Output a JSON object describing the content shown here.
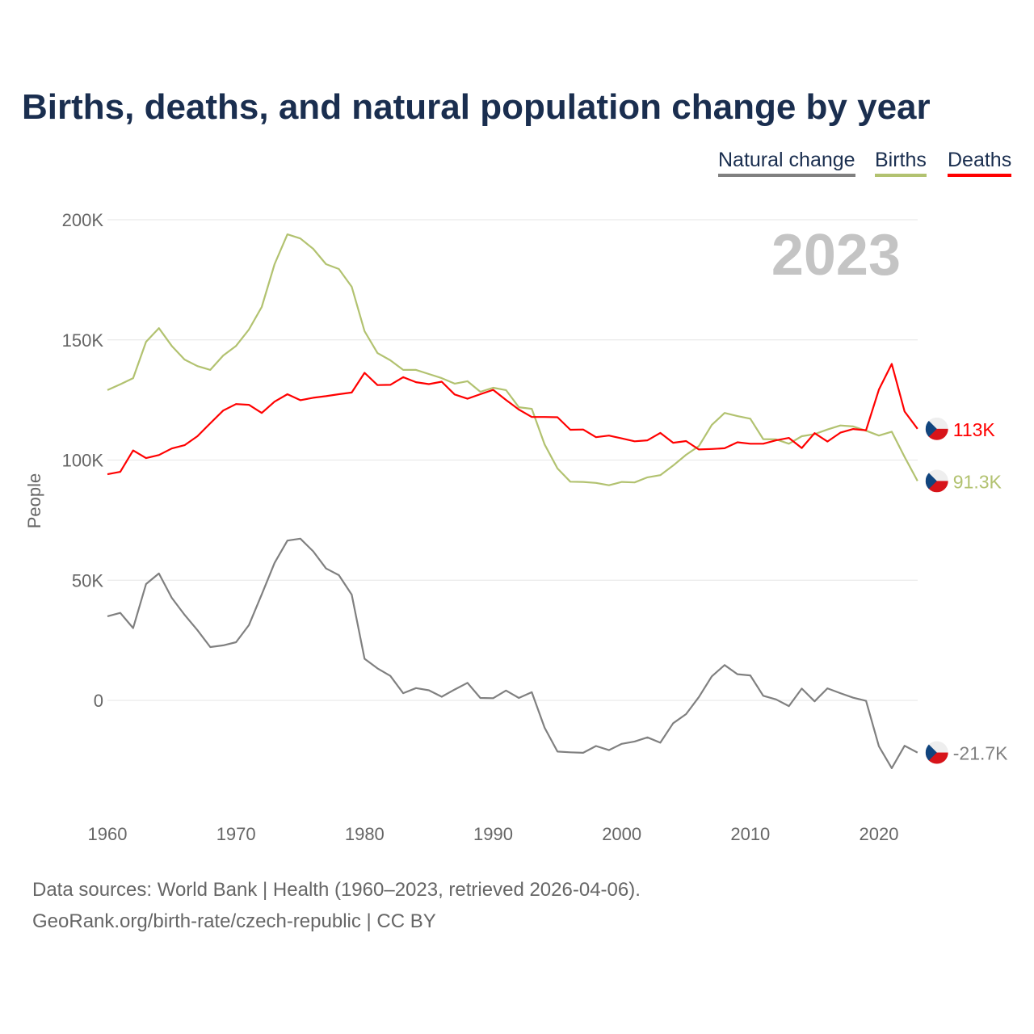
{
  "title": "Births, deaths, and natural population change by year",
  "legend": [
    {
      "label": "Natural change",
      "color": "#808080"
    },
    {
      "label": "Births",
      "color": "#b2c270"
    },
    {
      "label": "Deaths",
      "color": "#ff0000"
    }
  ],
  "year_label": "2023",
  "footer": {
    "source": "Data sources: World Bank | Health (1960–2023, retrieved 2026-04-06).",
    "credit": "GeoRank.org/birth-rate/czech-republic | CC BY"
  },
  "chart_data": {
    "type": "line",
    "title": "Births, deaths, and natural population change by year",
    "xlabel": "",
    "ylabel": "People",
    "xlim": [
      1960,
      2023
    ],
    "ylim": [
      -40000,
      200000
    ],
    "x_ticks": [
      "1960",
      "1970",
      "1980",
      "1990",
      "2000",
      "2010",
      "2020"
    ],
    "y_ticks": [
      {
        "v": 0,
        "label": "0"
      },
      {
        "v": 50000,
        "label": "50K"
      },
      {
        "v": 100000,
        "label": "100K"
      },
      {
        "v": 150000,
        "label": "150K"
      },
      {
        "v": 200000,
        "label": "200K"
      }
    ],
    "grid": true,
    "legend_position": "top-right",
    "x_start": 1960,
    "series": [
      {
        "name": "Natural change",
        "color": "#808080",
        "end_label": "-21.7K",
        "values": [
          35000,
          36400,
          30100,
          48400,
          52800,
          42700,
          35600,
          29200,
          22200,
          22900,
          24200,
          31300,
          44100,
          57200,
          66500,
          67300,
          62000,
          54900,
          52100,
          44000,
          17300,
          13300,
          10200,
          3000,
          5100,
          4200,
          1500,
          4500,
          7300,
          1000,
          900,
          4100,
          1000,
          3400,
          -11400,
          -21300,
          -21600,
          -21800,
          -19000,
          -20700,
          -18100,
          -17100,
          -15400,
          -17600,
          -9500,
          -5700,
          1400,
          10000,
          14700,
          10900,
          10400,
          1900,
          400,
          -2400,
          4900,
          -400,
          5000,
          3000,
          1100,
          -200,
          -19100,
          -28200,
          -18900,
          -21700
        ]
      },
      {
        "name": "Births",
        "color": "#b2c270",
        "end_label": "91.3K",
        "values": [
          129100,
          131500,
          134100,
          149200,
          154900,
          147500,
          141800,
          139100,
          137500,
          143500,
          147500,
          154300,
          163700,
          181500,
          193900,
          192200,
          187900,
          181500,
          179500,
          172100,
          153600,
          144500,
          141500,
          137500,
          137500,
          135800,
          134100,
          131800,
          132800,
          128400,
          130100,
          129100,
          122000,
          121300,
          106500,
          96500,
          91000,
          90900,
          90500,
          89500,
          90900,
          90700,
          92800,
          93700,
          97700,
          102200,
          105800,
          114600,
          119600,
          118300,
          117200,
          108700,
          108600,
          106800,
          109900,
          110800,
          112700,
          114400,
          114000,
          112200,
          110200,
          111800,
          101300,
          91300
        ]
      },
      {
        "name": "Deaths",
        "color": "#ff0000",
        "end_label": "113K",
        "values": [
          94100,
          95100,
          104000,
          100800,
          102100,
          104800,
          106200,
          109900,
          115300,
          120600,
          123300,
          123000,
          119600,
          124300,
          127400,
          124900,
          125900,
          126600,
          127400,
          128100,
          136300,
          131200,
          131300,
          134500,
          132400,
          131600,
          132600,
          127300,
          125500,
          127400,
          129200,
          125000,
          121000,
          117900,
          117900,
          117800,
          112600,
          112700,
          109500,
          110200,
          109000,
          107800,
          108200,
          111300,
          107200,
          107900,
          104400,
          104600,
          104900,
          107400,
          106800,
          106800,
          108200,
          109200,
          105000,
          111200,
          107700,
          111400,
          112900,
          112400,
          129300,
          140000,
          120200,
          113000
        ]
      }
    ]
  }
}
